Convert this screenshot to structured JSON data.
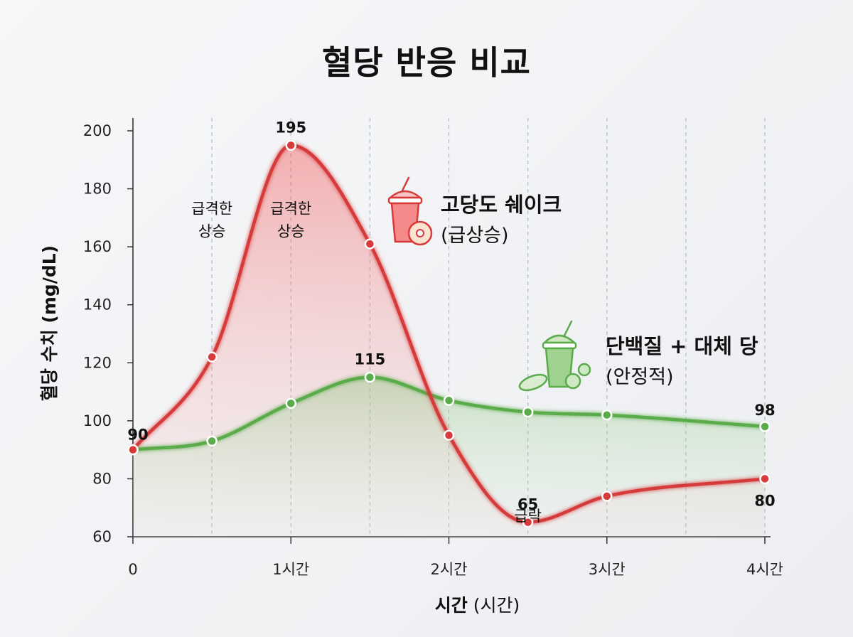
{
  "title": "혈당 반응 비교",
  "chart_data": {
    "type": "line",
    "title": "혈당 반응 비교",
    "xlabel_bold": "시간",
    "xlabel_rest": "(시간)",
    "ylabel": "혈당 수치 (mg/dL)",
    "ylim": [
      60,
      200
    ],
    "xlim": [
      0,
      4
    ],
    "yticks": [
      60,
      80,
      100,
      120,
      140,
      160,
      180,
      200
    ],
    "xticks": [
      {
        "value": 0,
        "label": "0"
      },
      {
        "value": 1,
        "label": "1시간"
      },
      {
        "value": 2,
        "label": "2시간"
      },
      {
        "value": 3,
        "label": "3시간"
      },
      {
        "value": 4,
        "label": "4시간"
      }
    ],
    "grid_x": [
      0.5,
      1,
      1.5,
      2,
      2.5,
      3,
      3.5,
      4
    ],
    "series": [
      {
        "name": "고당도 쉐이크",
        "subtitle": "(급상승)",
        "color": "#d63a3a",
        "x": [
          0,
          0.5,
          1,
          1.5,
          2,
          2.5,
          3,
          4
        ],
        "y": [
          90,
          122,
          195,
          161,
          95,
          65,
          74,
          80
        ]
      },
      {
        "name": "단백질 + 대체 당",
        "subtitle": "(안정적)",
        "color": "#5aab4a",
        "x": [
          0,
          0.5,
          1,
          1.5,
          2,
          2.5,
          3,
          4
        ],
        "y": [
          90,
          93,
          106,
          115,
          107,
          103,
          102,
          98
        ]
      }
    ],
    "data_labels": [
      {
        "text": "90",
        "x": 0,
        "y": 90
      },
      {
        "text": "195",
        "x": 1,
        "y": 195
      },
      {
        "text": "115",
        "x": 1.5,
        "y": 115
      },
      {
        "text": "65",
        "x": 2.5,
        "y": 65
      },
      {
        "text": "98",
        "x": 4,
        "y": 98
      },
      {
        "text": "80",
        "x": 4,
        "y": 80
      }
    ],
    "annotations": [
      {
        "lines": [
          "급격한",
          "상승"
        ],
        "x": 0.5,
        "y": 180
      },
      {
        "lines": [
          "급격한",
          "상승"
        ],
        "x": 1,
        "y": 180
      },
      {
        "lines": [
          "급락"
        ],
        "x": 2.5,
        "y": 74
      }
    ]
  }
}
